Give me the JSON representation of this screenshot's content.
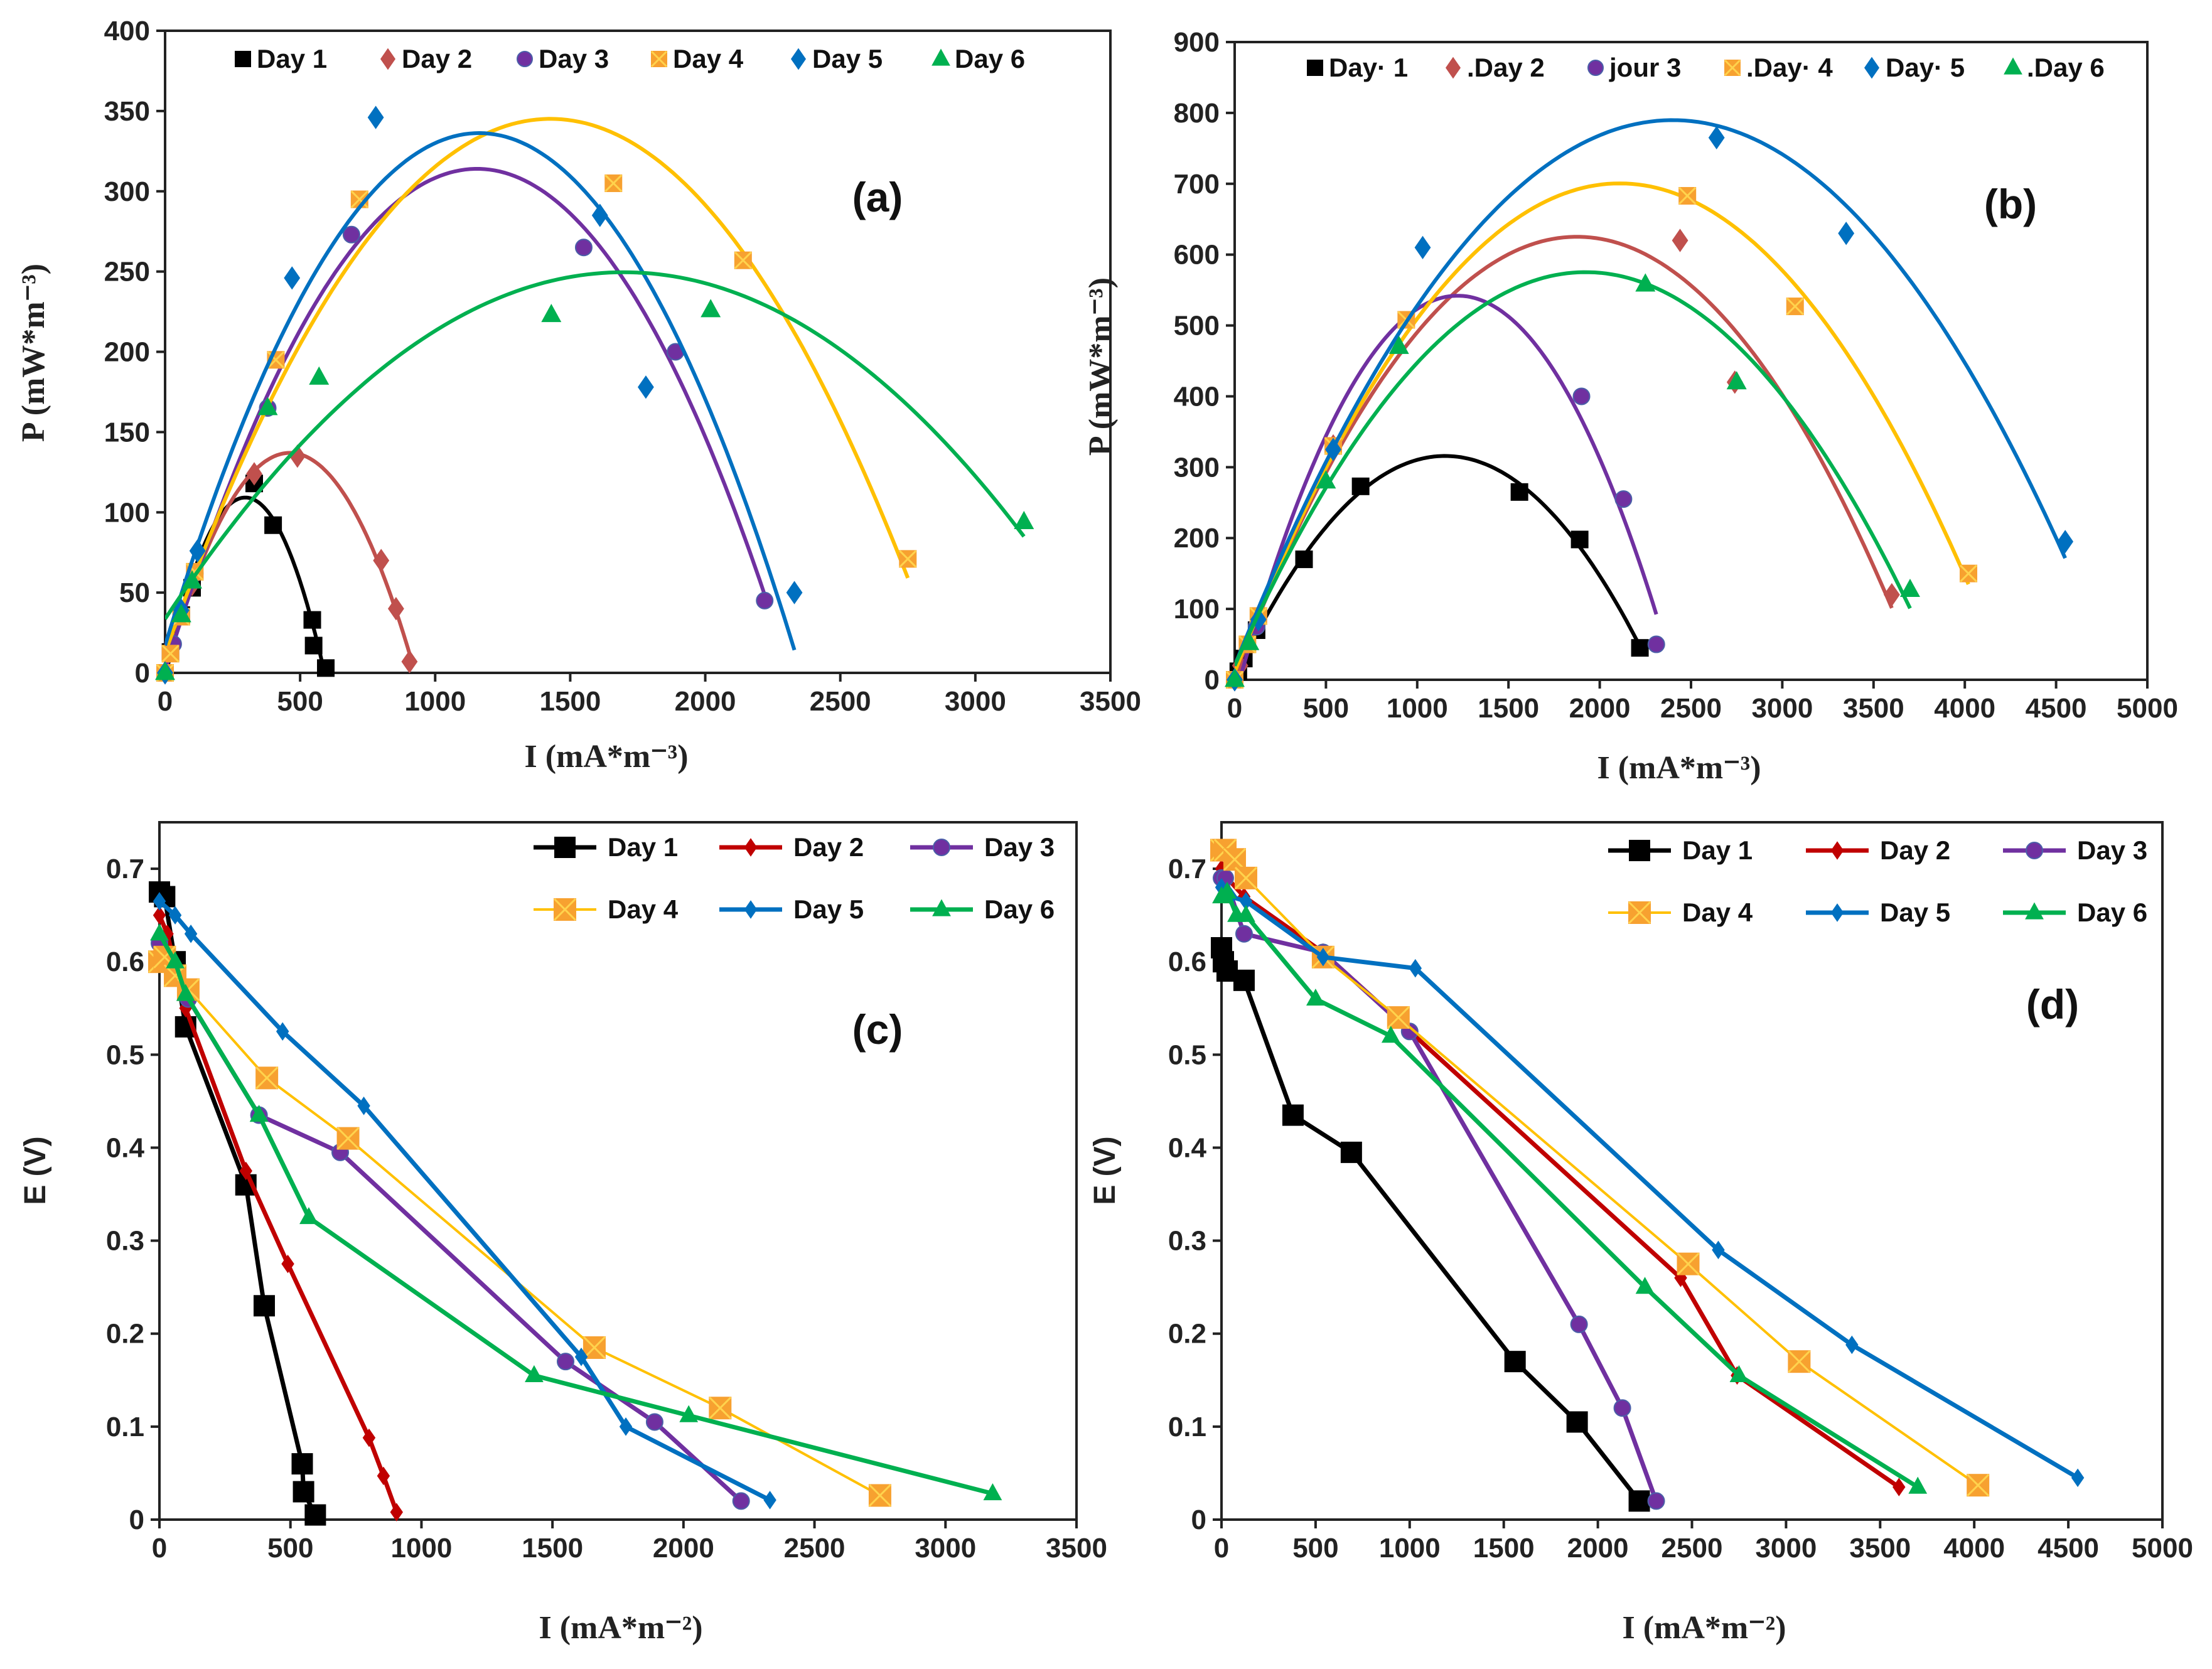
{
  "chart_data": [
    {
      "panel_label": "(a)",
      "type": "scatter",
      "trendline": "polynomial-2",
      "title": "",
      "xlabel": "I (mA*m⁻³)",
      "ylabel": "P (mW*m⁻³)",
      "xlim": [
        0,
        3500
      ],
      "ylim": [
        0,
        400
      ],
      "xticks": [
        "0",
        "500",
        "1000",
        "1500",
        "2000",
        "2500",
        "3000",
        "3500"
      ],
      "yticks": [
        "0",
        "50",
        "100",
        "150",
        "200",
        "250",
        "300",
        "350",
        "400"
      ],
      "legend": "top",
      "series": [
        {
          "name": "Day  1",
          "color": "#000000",
          "marker": "square",
          "points": [
            [
              0,
              0
            ],
            [
              20,
              13
            ],
            [
              60,
              36
            ],
            [
              100,
              53
            ],
            [
              330,
              118
            ],
            [
              400,
              92
            ],
            [
              545,
              33
            ],
            [
              550,
              17
            ],
            [
              595,
              3
            ]
          ]
        },
        {
          "name": "Day 2",
          "color": "#c0504d",
          "marker": "diamond",
          "points": [
            [
              0,
              0
            ],
            [
              30,
              19
            ],
            [
              100,
              55
            ],
            [
              330,
              124
            ],
            [
              490,
              135
            ],
            [
              800,
              70
            ],
            [
              855,
              40
            ],
            [
              905,
              7
            ]
          ]
        },
        {
          "name": "Day 3",
          "color": "#7030a0",
          "marker": "circle",
          "points": [
            [
              0,
              0
            ],
            [
              30,
              18
            ],
            [
              110,
              62
            ],
            [
              380,
              165
            ],
            [
              690,
              273
            ],
            [
              1550,
              265
            ],
            [
              1890,
              200
            ],
            [
              2220,
              45
            ]
          ]
        },
        {
          "name": "Day  4",
          "color": "#ffc000",
          "marker": "xsquare",
          "points": [
            [
              0,
              0
            ],
            [
              20,
              12
            ],
            [
              60,
              35
            ],
            [
              110,
              63
            ],
            [
              410,
              195
            ],
            [
              720,
              295
            ],
            [
              1660,
              305
            ],
            [
              2140,
              257
            ],
            [
              2750,
              71
            ]
          ]
        },
        {
          "name": "Day  5",
          "color": "#0070c0",
          "marker": "diamond",
          "points": [
            [
              0,
              0
            ],
            [
              60,
              39
            ],
            [
              120,
              76
            ],
            [
              470,
              246
            ],
            [
              780,
              346
            ],
            [
              1610,
              285
            ],
            [
              1780,
              178
            ],
            [
              2330,
              50
            ]
          ]
        },
        {
          "name": "Day  6",
          "color": "#00b050",
          "marker": "triangle",
          "points": [
            [
              0,
              0
            ],
            [
              60,
              36
            ],
            [
              100,
              57
            ],
            [
              380,
              165
            ],
            [
              570,
              184
            ],
            [
              1430,
              223
            ],
            [
              2020,
              226
            ],
            [
              3180,
              94
            ]
          ]
        }
      ]
    },
    {
      "panel_label": "(b)",
      "type": "scatter",
      "trendline": "polynomial-2",
      "title": "",
      "xlabel": "I (mA*m⁻³)",
      "ylabel": "P (mW*m⁻³)",
      "xlim": [
        0,
        5000
      ],
      "ylim": [
        0,
        900
      ],
      "xticks": [
        "0",
        "500",
        "1000",
        "1500",
        "2000",
        "2500",
        "3000",
        "3500",
        "4000",
        "4500",
        "5000"
      ],
      "yticks": [
        "0",
        "100",
        "200",
        "300",
        "400",
        "500",
        "600",
        "700",
        "800",
        "900"
      ],
      "legend": "top",
      "series": [
        {
          "name": "Day· 1",
          "color": "#000000",
          "marker": "square",
          "points": [
            [
              0,
              0
            ],
            [
              20,
              12
            ],
            [
              50,
              30
            ],
            [
              120,
              70
            ],
            [
              380,
              170
            ],
            [
              690,
              273
            ],
            [
              1560,
              265
            ],
            [
              1890,
              198
            ],
            [
              2220,
              45
            ]
          ]
        },
        {
          "name": ".Day 2",
          "color": "#c0504d",
          "marker": "diamond",
          "points": [
            [
              0,
              0
            ],
            [
              30,
              20
            ],
            [
              120,
              80
            ],
            [
              540,
              330
            ],
            [
              2440,
              620
            ],
            [
              2740,
              420
            ],
            [
              3600,
              120
            ]
          ]
        },
        {
          "name": "jour 3",
          "color": "#7030a0",
          "marker": "circle",
          "points": [
            [
              0,
              0
            ],
            [
              120,
              75
            ],
            [
              540,
              330
            ],
            [
              1900,
              400
            ],
            [
              2130,
              255
            ],
            [
              2310,
              50
            ]
          ]
        },
        {
          "name": ".Day· 4",
          "color": "#ffc000",
          "marker": "xsquare",
          "points": [
            [
              0,
              0
            ],
            [
              70,
              50
            ],
            [
              130,
              90
            ],
            [
              540,
              330
            ],
            [
              940,
              508
            ],
            [
              2480,
              683
            ],
            [
              3070,
              527
            ],
            [
              4020,
              150
            ]
          ]
        },
        {
          "name": "Day· 5",
          "color": "#0070c0",
          "marker": "diamond",
          "points": [
            [
              0,
              0
            ],
            [
              130,
              85
            ],
            [
              540,
              325
            ],
            [
              1030,
              610
            ],
            [
              2640,
              765
            ],
            [
              3350,
              630
            ],
            [
              4550,
              195
            ]
          ]
        },
        {
          "name": ".Day 6",
          "color": "#00b050",
          "marker": "triangle",
          "points": [
            [
              0,
              0
            ],
            [
              80,
              52
            ],
            [
              500,
              280
            ],
            [
              900,
              470
            ],
            [
              2250,
              558
            ],
            [
              2750,
              420
            ],
            [
              3700,
              127
            ]
          ]
        }
      ]
    },
    {
      "panel_label": "(c)",
      "type": "line",
      "title": "",
      "xlabel": "I (mA*m⁻²)",
      "ylabel": "E (V)",
      "xlim": [
        0,
        3500
      ],
      "ylim": [
        0,
        0.75
      ],
      "xticks": [
        "0",
        "500",
        "1000",
        "1500",
        "2000",
        "2500",
        "3000",
        "3500"
      ],
      "yticks": [
        "0",
        "0.1",
        "0.2",
        "0.3",
        "0.4",
        "0.5",
        "0.6",
        "0.7"
      ],
      "legend": "top-right",
      "series": [
        {
          "name": "Day 1",
          "color": "#000000",
          "marker": "square",
          "points": [
            [
              0,
              0.675
            ],
            [
              20,
              0.67
            ],
            [
              60,
              0.6
            ],
            [
              100,
              0.53
            ],
            [
              330,
              0.36
            ],
            [
              400,
              0.23
            ],
            [
              545,
              0.06
            ],
            [
              550,
              0.03
            ],
            [
              595,
              0.005
            ]
          ]
        },
        {
          "name": "Day 2",
          "color": "#c00000",
          "marker": "diamond",
          "points": [
            [
              0,
              0.65
            ],
            [
              30,
              0.63
            ],
            [
              100,
              0.55
            ],
            [
              330,
              0.375
            ],
            [
              490,
              0.275
            ],
            [
              800,
              0.088
            ],
            [
              855,
              0.047
            ],
            [
              905,
              0.008
            ]
          ]
        },
        {
          "name": "Day 3",
          "color": "#7030a0",
          "marker": "circle",
          "points": [
            [
              0,
              0.62
            ],
            [
              30,
              0.6
            ],
            [
              110,
              0.56
            ],
            [
              380,
              0.435
            ],
            [
              690,
              0.395
            ],
            [
              1550,
              0.17
            ],
            [
              1890,
              0.105
            ],
            [
              2220,
              0.02
            ]
          ]
        },
        {
          "name": "Day 4",
          "color": "#ffc000",
          "marker": "xsquare",
          "points": [
            [
              0,
              0.6
            ],
            [
              20,
              0.605
            ],
            [
              60,
              0.585
            ],
            [
              110,
              0.57
            ],
            [
              410,
              0.475
            ],
            [
              720,
              0.41
            ],
            [
              1660,
              0.185
            ],
            [
              2140,
              0.12
            ],
            [
              2750,
              0.026
            ]
          ]
        },
        {
          "name": "Day 5",
          "color": "#0070c0",
          "marker": "diamond",
          "points": [
            [
              0,
              0.665
            ],
            [
              60,
              0.65
            ],
            [
              120,
              0.63
            ],
            [
              470,
              0.525
            ],
            [
              780,
              0.445
            ],
            [
              1610,
              0.175
            ],
            [
              1780,
              0.1
            ],
            [
              2330,
              0.021
            ]
          ]
        },
        {
          "name": "Day 6",
          "color": "#00b050",
          "marker": "triangle",
          "points": [
            [
              0,
              0.63
            ],
            [
              60,
              0.6
            ],
            [
              100,
              0.565
            ],
            [
              380,
              0.435
            ],
            [
              570,
              0.325
            ],
            [
              1430,
              0.155
            ],
            [
              2020,
              0.112
            ],
            [
              3180,
              0.028
            ]
          ]
        }
      ]
    },
    {
      "panel_label": "(d)",
      "type": "line",
      "title": "",
      "xlabel": "I (mA*m⁻²)",
      "ylabel": "E (V)",
      "xlim": [
        0,
        5000
      ],
      "ylim": [
        0,
        0.75
      ],
      "xticks": [
        "0",
        "500",
        "1000",
        "1500",
        "2000",
        "2500",
        "3000",
        "3500",
        "4000",
        "4500",
        "5000"
      ],
      "yticks": [
        "0",
        "0.1",
        "0.2",
        "0.3",
        "0.4",
        "0.5",
        "0.6",
        "0.7"
      ],
      "legend": "top-right",
      "series": [
        {
          "name": "Day  1",
          "color": "#000000",
          "marker": "square",
          "points": [
            [
              0,
              0.615
            ],
            [
              10,
              0.6
            ],
            [
              30,
              0.59
            ],
            [
              120,
              0.58
            ],
            [
              380,
              0.435
            ],
            [
              690,
              0.395
            ],
            [
              1560,
              0.17
            ],
            [
              1890,
              0.105
            ],
            [
              2220,
              0.02
            ]
          ]
        },
        {
          "name": "Day 2",
          "color": "#c00000",
          "marker": "diamond",
          "points": [
            [
              0,
              0.7
            ],
            [
              30,
              0.69
            ],
            [
              120,
              0.67
            ],
            [
              540,
              0.61
            ],
            [
              2440,
              0.26
            ],
            [
              2740,
              0.155
            ],
            [
              3600,
              0.035
            ]
          ]
        },
        {
          "name": "Day 3",
          "color": "#7030a0",
          "marker": "circle",
          "points": [
            [
              0,
              0.69
            ],
            [
              20,
              0.69
            ],
            [
              120,
              0.63
            ],
            [
              540,
              0.61
            ],
            [
              1000,
              0.525
            ],
            [
              1900,
              0.21
            ],
            [
              2130,
              0.12
            ],
            [
              2310,
              0.02
            ]
          ]
        },
        {
          "name": "Day 4",
          "color": "#ffc000",
          "marker": "xsquare",
          "points": [
            [
              0,
              0.72
            ],
            [
              20,
              0.72
            ],
            [
              70,
              0.71
            ],
            [
              130,
              0.69
            ],
            [
              540,
              0.605
            ],
            [
              940,
              0.54
            ],
            [
              2480,
              0.275
            ],
            [
              3070,
              0.17
            ],
            [
              4020,
              0.037
            ]
          ]
        },
        {
          "name": "Day 5",
          "color": "#0070c0",
          "marker": "diamond",
          "points": [
            [
              0,
              0.68
            ],
            [
              50,
              0.67
            ],
            [
              130,
              0.665
            ],
            [
              540,
              0.605
            ],
            [
              1030,
              0.593
            ],
            [
              2640,
              0.29
            ],
            [
              3350,
              0.188
            ],
            [
              4550,
              0.045
            ]
          ]
        },
        {
          "name": "Day 6",
          "color": "#00b050",
          "marker": "triangle",
          "points": [
            [
              0,
              0.67
            ],
            [
              30,
              0.675
            ],
            [
              80,
              0.65
            ],
            [
              130,
              0.65
            ],
            [
              500,
              0.56
            ],
            [
              900,
              0.52
            ],
            [
              2250,
              0.25
            ],
            [
              2750,
              0.155
            ],
            [
              3700,
              0.035
            ]
          ]
        }
      ]
    }
  ]
}
